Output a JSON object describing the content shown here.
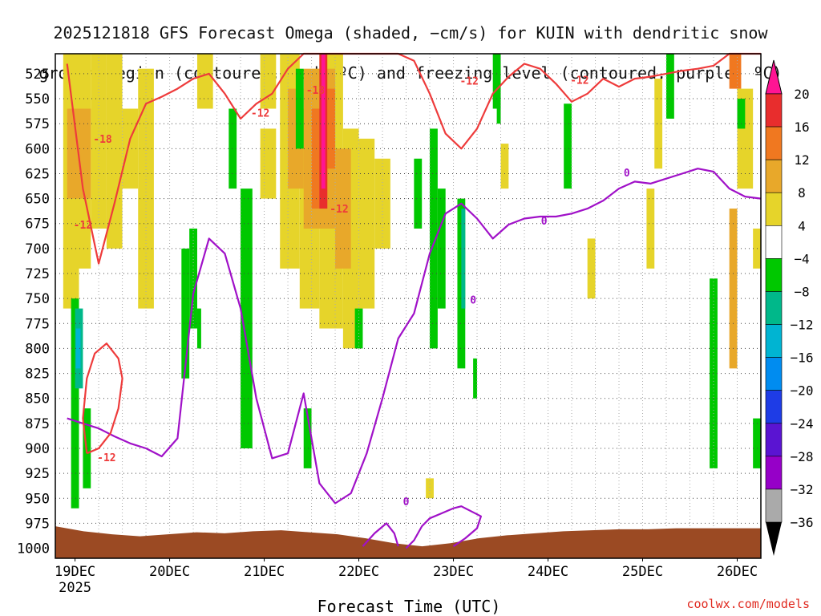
{
  "title_line1": "2025121818 GFS Forecast Omega (shaded, −cm/s) for KUIN with dendritic snow",
  "title_line2": "growth region (contoured, red, ºC) and freezing level (contoured, purple, ºC)",
  "credit": "coolwx.com/models",
  "chart_data": {
    "type": "heatmap",
    "xlabel": "Forecast Time (UTC)",
    "ylabel": "",
    "x_ticks": [
      "19DEC\n2025",
      "20DEC",
      "21DEC",
      "22DEC",
      "23DEC",
      "24DEC",
      "25DEC",
      "26DEC"
    ],
    "x_range_hours": [
      -5,
      174
    ],
    "y_ticks": [
      525,
      550,
      575,
      600,
      625,
      650,
      675,
      700,
      725,
      750,
      775,
      800,
      825,
      850,
      875,
      900,
      925,
      950,
      975,
      1000
    ],
    "y_range_hPa": [
      505,
      1010
    ],
    "y_reversed": true,
    "grid": true,
    "colorbar_ticks": [
      20,
      16,
      12,
      8,
      4,
      -4,
      -8,
      -12,
      -16,
      -20,
      -24,
      -28,
      -32,
      -36
    ],
    "colorbar_colors": [
      "#ff1493",
      "#e82d2d",
      "#f07820",
      "#e8a82a",
      "#e6d42a",
      "#ffffff",
      "#00c800",
      "#00b88a",
      "#00b4d2",
      "#008cf0",
      "#1e3ce6",
      "#5a14d2",
      "#9600c8",
      "#aaaaaa"
    ],
    "ground_color": "#9b4a23",
    "red_contour_label": "-12",
    "red_contour_label_2": "-18",
    "purple_contour_label": "0",
    "red_contour_hours": [
      -2,
      2,
      6,
      10,
      14,
      18,
      22,
      26,
      30,
      34,
      38,
      42,
      46,
      50,
      54,
      58,
      62,
      66,
      70,
      74,
      78,
      82,
      86,
      90,
      94,
      98,
      102,
      106,
      110,
      114,
      118,
      122,
      126,
      130,
      134,
      138,
      142,
      146,
      150,
      154,
      158,
      162,
      166,
      170,
      174
    ],
    "red_contour_hPa": [
      515,
      640,
      715,
      655,
      590,
      555,
      548,
      540,
      530,
      525,
      545,
      570,
      555,
      545,
      520,
      505,
      505,
      505,
      505,
      505,
      505,
      505,
      512,
      545,
      585,
      600,
      580,
      545,
      528,
      515,
      520,
      535,
      553,
      545,
      530,
      538,
      530,
      528,
      525,
      522,
      520,
      517,
      505,
      505,
      505
    ],
    "purple_contour_hours": [
      -2,
      2,
      6,
      10,
      14,
      18,
      22,
      26,
      30,
      34,
      38,
      42,
      46,
      50,
      54,
      58,
      62,
      66,
      70,
      74,
      78,
      82,
      86,
      90,
      94,
      98,
      102,
      106,
      110,
      114,
      118,
      122,
      126,
      130,
      134,
      138,
      142,
      146,
      150,
      154,
      158,
      162,
      166,
      170,
      174
    ],
    "purple_contour_hPa": [
      870,
      875,
      880,
      888,
      895,
      900,
      908,
      890,
      745,
      690,
      705,
      760,
      850,
      910,
      905,
      845,
      935,
      955,
      945,
      905,
      850,
      790,
      765,
      705,
      665,
      655,
      670,
      690,
      676,
      670,
      668,
      668,
      665,
      660,
      652,
      640,
      633,
      635,
      630,
      625,
      620,
      623,
      640,
      648,
      650
    ],
    "ground_hPa": [
      978,
      983,
      986,
      988,
      986,
      984,
      985,
      983,
      982,
      984,
      986,
      990,
      995,
      998,
      995,
      990,
      987,
      985,
      983,
      982,
      981,
      981,
      980,
      980,
      980,
      980
    ]
  }
}
